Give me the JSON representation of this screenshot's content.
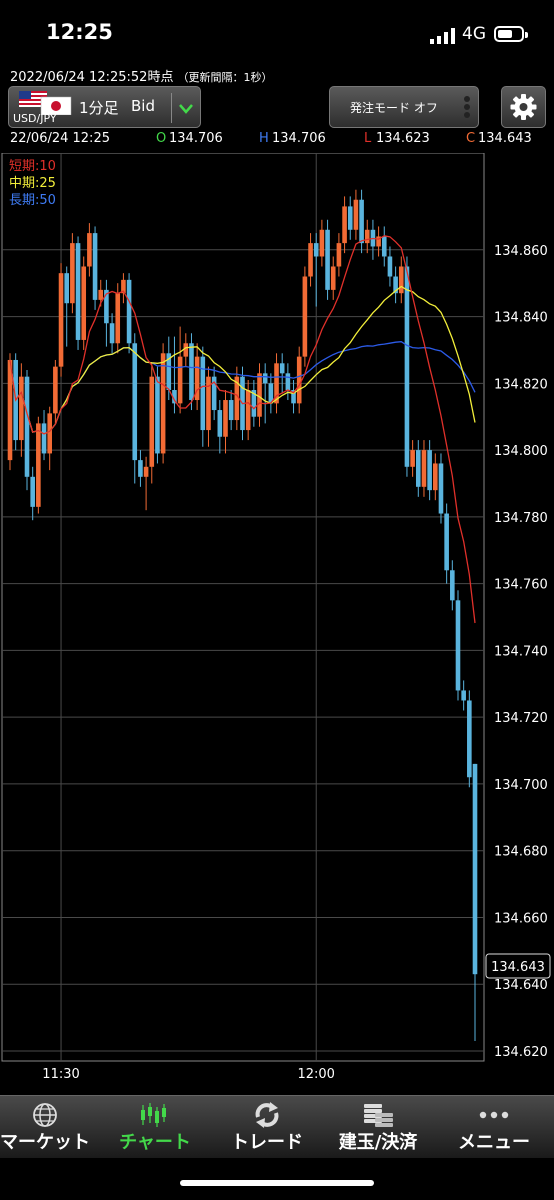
{
  "status_bar": {
    "time": "12:25",
    "network": "4G"
  },
  "header": {
    "timestamp": "2022/06/24  12:25:52時点",
    "update_interval": "（更新間隔：1秒）"
  },
  "toolbar": {
    "pair": "USD/JPY",
    "timeframe": "1分足",
    "price_type": "Bid",
    "order_mode_label": "発注モード オフ"
  },
  "ohlc": {
    "datetime": "22/06/24 12:25",
    "open_prefix": "O",
    "open": "134.706",
    "high_prefix": "H",
    "high": "134.706",
    "low_prefix": "L",
    "low": "134.623",
    "close_prefix": "C",
    "close": "134.643"
  },
  "legend": {
    "short": "短期:10",
    "mid": "中期:25",
    "long": "長期:50"
  },
  "colors": {
    "up": "#f26b35",
    "down": "#5ab4de",
    "short_ma": "#e0302a",
    "mid_ma": "#f2ee3a",
    "long_ma": "#2c5be8",
    "grid": "#4a4a4a",
    "nav_active": "#43d94a"
  },
  "chart_data": {
    "type": "candlestick",
    "x_ticks": [
      "11:30",
      "12:00"
    ],
    "y_ticks": [
      "134.860",
      "134.840",
      "134.820",
      "134.800",
      "134.780",
      "134.760",
      "134.740",
      "134.720",
      "134.700",
      "134.680",
      "134.660",
      "134.640",
      "134.620"
    ],
    "ylim": [
      134.617,
      134.889
    ],
    "current_price": "134.643",
    "candles": [
      [
        134.797,
        134.827,
        134.794,
        134.829
      ],
      [
        134.827,
        134.803,
        134.8,
        134.829
      ],
      [
        134.803,
        134.822,
        134.798,
        134.826
      ],
      [
        134.822,
        134.792,
        134.788,
        134.824
      ],
      [
        134.792,
        134.783,
        134.779,
        134.795
      ],
      [
        134.783,
        134.808,
        134.781,
        134.81
      ],
      [
        134.808,
        134.799,
        134.797,
        134.812
      ],
      [
        134.799,
        134.811,
        134.794,
        134.813
      ],
      [
        134.811,
        134.825,
        134.808,
        134.827
      ],
      [
        134.825,
        134.853,
        134.822,
        134.856
      ],
      [
        134.853,
        134.844,
        134.831,
        134.855
      ],
      [
        134.844,
        134.862,
        134.841,
        134.865
      ],
      [
        134.862,
        134.833,
        134.83,
        134.864
      ],
      [
        134.833,
        134.855,
        134.83,
        134.858
      ],
      [
        134.855,
        134.865,
        134.852,
        134.868
      ],
      [
        134.865,
        134.845,
        134.842,
        134.867
      ],
      [
        134.845,
        134.848,
        134.843,
        134.851
      ],
      [
        134.848,
        134.838,
        134.831,
        134.851
      ],
      [
        134.838,
        134.832,
        134.829,
        134.841
      ],
      [
        134.832,
        134.847,
        134.829,
        134.85
      ],
      [
        134.847,
        134.851,
        134.844,
        134.853
      ],
      [
        134.851,
        134.832,
        134.829,
        134.853
      ],
      [
        134.832,
        134.797,
        134.79,
        134.835
      ],
      [
        134.797,
        134.792,
        134.789,
        134.8
      ],
      [
        134.792,
        134.795,
        134.782,
        134.798
      ],
      [
        134.795,
        134.822,
        134.79,
        134.826
      ],
      [
        134.822,
        134.799,
        134.796,
        134.825
      ],
      [
        134.799,
        134.829,
        134.796,
        134.832
      ],
      [
        134.829,
        134.818,
        134.815,
        134.834
      ],
      [
        134.818,
        134.814,
        134.811,
        134.834
      ],
      [
        134.814,
        134.828,
        134.811,
        134.837
      ],
      [
        134.828,
        134.832,
        134.825,
        134.835
      ],
      [
        134.832,
        134.815,
        134.812,
        134.835
      ],
      [
        134.815,
        134.828,
        134.812,
        134.832
      ],
      [
        134.828,
        134.806,
        134.801,
        134.831
      ],
      [
        134.806,
        134.822,
        134.801,
        134.825
      ],
      [
        134.822,
        134.812,
        134.809,
        134.825
      ],
      [
        134.812,
        134.804,
        134.799,
        134.815
      ],
      [
        134.804,
        134.815,
        134.799,
        134.818
      ],
      [
        134.815,
        134.809,
        134.806,
        134.818
      ],
      [
        134.809,
        134.822,
        134.806,
        134.825
      ],
      [
        134.822,
        134.806,
        134.803,
        134.825
      ],
      [
        134.806,
        134.818,
        134.803,
        134.821
      ],
      [
        134.818,
        134.81,
        134.807,
        134.821
      ],
      [
        134.81,
        134.823,
        134.807,
        134.826
      ],
      [
        134.823,
        134.82,
        134.808,
        134.826
      ],
      [
        134.82,
        134.814,
        134.811,
        134.823
      ],
      [
        134.814,
        134.826,
        134.811,
        134.829
      ],
      [
        134.826,
        134.823,
        134.817,
        134.829
      ],
      [
        134.823,
        134.818,
        134.815,
        134.826
      ],
      [
        134.818,
        134.814,
        134.811,
        134.821
      ],
      [
        134.814,
        134.828,
        134.811,
        134.831
      ],
      [
        134.828,
        134.852,
        134.825,
        134.855
      ],
      [
        134.852,
        134.862,
        134.849,
        134.865
      ],
      [
        134.862,
        134.858,
        134.843,
        134.865
      ],
      [
        134.858,
        134.866,
        134.855,
        134.869
      ],
      [
        134.866,
        134.848,
        134.845,
        134.869
      ],
      [
        134.848,
        134.855,
        134.845,
        134.858
      ],
      [
        134.855,
        134.862,
        134.852,
        134.865
      ],
      [
        134.862,
        134.873,
        134.859,
        134.876
      ],
      [
        134.873,
        134.866,
        134.863,
        134.876
      ],
      [
        134.866,
        134.875,
        134.863,
        134.878
      ],
      [
        134.875,
        134.862,
        134.859,
        134.878
      ],
      [
        134.862,
        134.866,
        134.859,
        134.869
      ],
      [
        134.866,
        134.861,
        134.857,
        134.869
      ],
      [
        134.861,
        134.864,
        134.858,
        134.867
      ],
      [
        134.864,
        134.858,
        134.855,
        134.867
      ],
      [
        134.858,
        134.852,
        134.849,
        134.861
      ],
      [
        134.852,
        134.847,
        134.844,
        134.855
      ],
      [
        134.847,
        134.855,
        134.844,
        134.858
      ],
      [
        134.855,
        134.795,
        134.792,
        134.858
      ],
      [
        134.795,
        134.8,
        134.792,
        134.803
      ],
      [
        134.8,
        134.789,
        134.786,
        134.803
      ],
      [
        134.789,
        134.8,
        134.786,
        134.803
      ],
      [
        134.8,
        134.788,
        134.785,
        134.803
      ],
      [
        134.788,
        134.796,
        134.785,
        134.799
      ],
      [
        134.796,
        134.781,
        134.778,
        134.799
      ],
      [
        134.781,
        134.764,
        134.76,
        134.784
      ],
      [
        134.764,
        134.755,
        134.752,
        134.767
      ],
      [
        134.755,
        134.728,
        134.725,
        134.758
      ],
      [
        134.728,
        134.725,
        134.722,
        134.731
      ],
      [
        134.725,
        134.702,
        134.699,
        134.728
      ],
      [
        134.706,
        134.643,
        134.623,
        134.706
      ]
    ],
    "ma_short": [],
    "ma_mid": [],
    "ma_long": []
  },
  "nav": {
    "items": [
      {
        "label": "マーケット",
        "icon": "globe-icon"
      },
      {
        "label": "チャート",
        "icon": "candlestick-icon"
      },
      {
        "label": "トレード",
        "icon": "trade-icon"
      },
      {
        "label": "建玉/決済",
        "icon": "coins-icon"
      },
      {
        "label": "メニュー",
        "icon": "menu-dots-icon"
      }
    ]
  }
}
